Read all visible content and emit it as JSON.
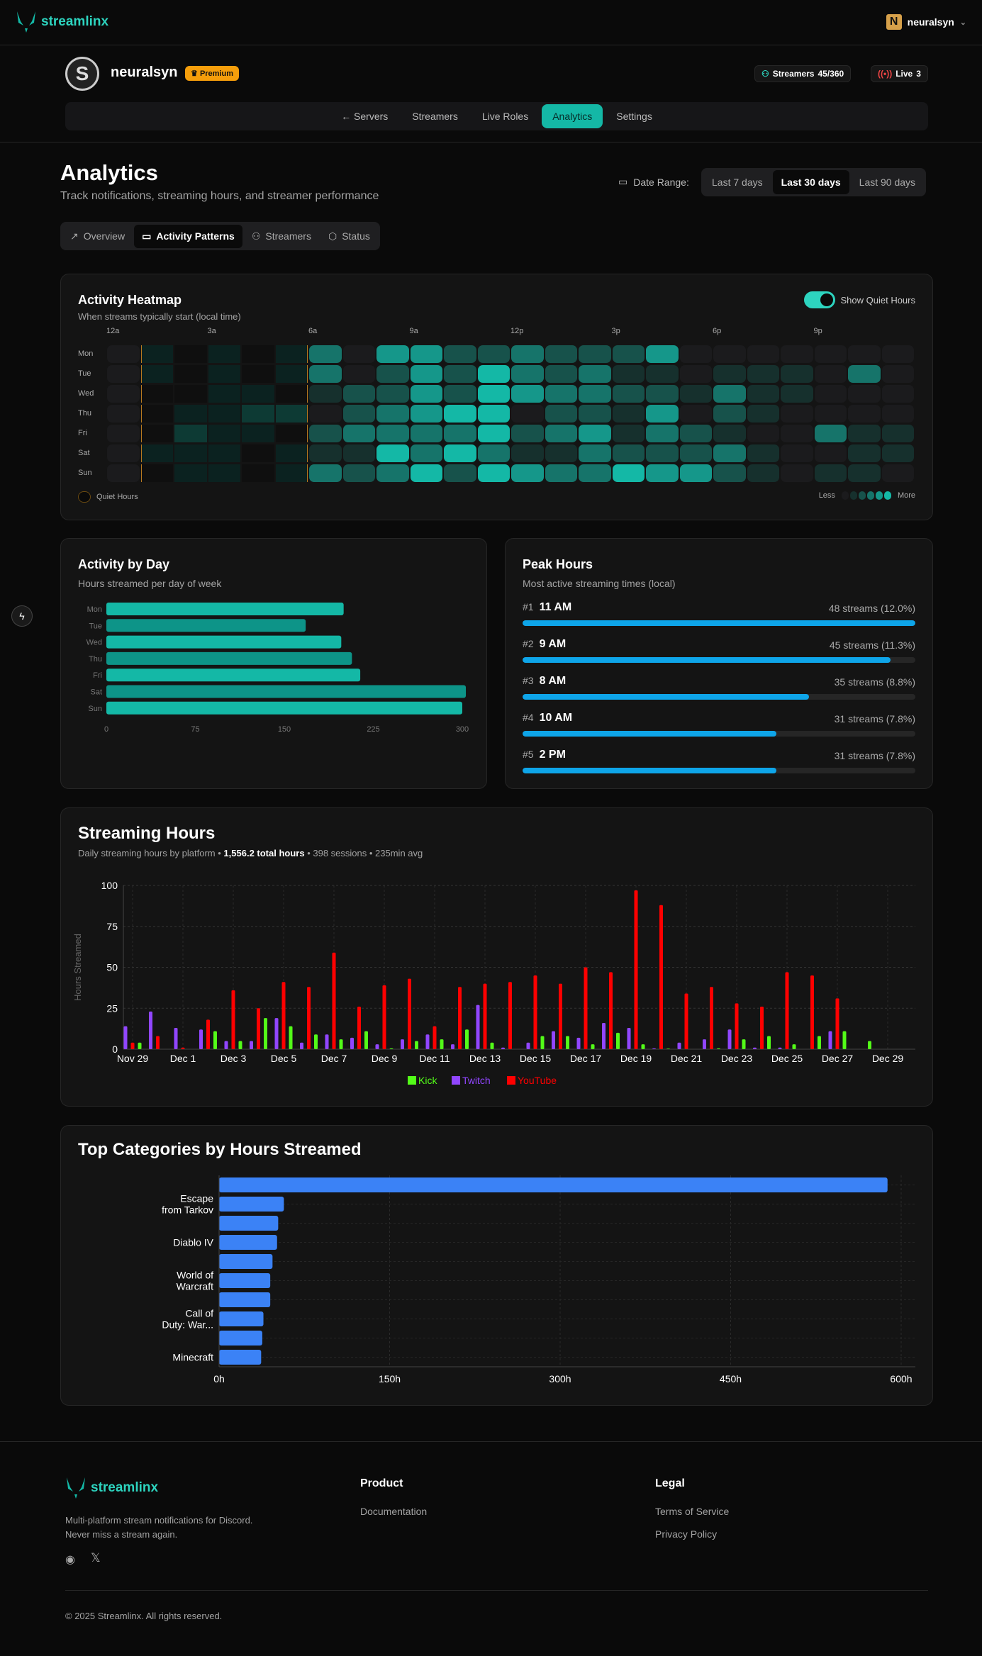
{
  "app": {
    "brand": "streamlinx",
    "user": "neuralsyn",
    "user_logo_letter": "N"
  },
  "server": {
    "initial": "S",
    "name": "neuralsyn",
    "badge": "Premium",
    "streamers_label": "Streamers",
    "streamers_value": "45/360",
    "live_label": "Live",
    "live_value": "3"
  },
  "subnav": [
    {
      "label": "Servers",
      "icon": "arrow-left-icon"
    },
    {
      "label": "Streamers"
    },
    {
      "label": "Live Roles"
    },
    {
      "label": "Analytics",
      "active": true
    },
    {
      "label": "Settings"
    }
  ],
  "page": {
    "title": "Analytics",
    "subtitle": "Track notifications, streaming hours, and streamer performance",
    "date_range_label": "Date Range:",
    "date_ranges": [
      "Last 7 days",
      "Last 30 days",
      "Last 90 days"
    ],
    "date_range_selected": "Last 30 days"
  },
  "tabs": [
    {
      "label": "Overview",
      "icon": "trending-icon"
    },
    {
      "label": "Activity Patterns",
      "icon": "calendar-icon",
      "active": true
    },
    {
      "label": "Streamers",
      "icon": "users-icon"
    },
    {
      "label": "Status",
      "icon": "shield-icon"
    }
  ],
  "heatmap": {
    "title": "Activity Heatmap",
    "subtitle": "When streams typically start (local time)",
    "toggle_label": "Show Quiet Hours",
    "toggle_on": true,
    "hour_labels": [
      "12a",
      "3a",
      "6a",
      "9a",
      "12p",
      "3p",
      "6p",
      "9p"
    ],
    "days": [
      "Mon",
      "Tue",
      "Wed",
      "Thu",
      "Fri",
      "Sat",
      "Sun"
    ],
    "quiet_hours": [
      1,
      2,
      3,
      4,
      5
    ],
    "levels": [
      [
        0,
        1,
        0,
        1,
        0,
        1,
        3,
        0,
        4,
        4,
        2,
        2,
        3,
        2,
        2,
        2,
        4,
        0,
        0,
        0,
        0,
        0,
        0,
        0
      ],
      [
        0,
        1,
        0,
        1,
        0,
        1,
        3,
        0,
        2,
        4,
        2,
        5,
        3,
        2,
        3,
        1,
        1,
        0,
        1,
        1,
        1,
        0,
        3,
        0
      ],
      [
        0,
        0,
        0,
        1,
        1,
        0,
        1,
        2,
        2,
        4,
        2,
        5,
        4,
        3,
        3,
        2,
        2,
        1,
        3,
        1,
        1,
        0,
        0,
        0
      ],
      [
        0,
        0,
        1,
        1,
        2,
        2,
        0,
        2,
        3,
        4,
        5,
        5,
        0,
        2,
        2,
        1,
        4,
        0,
        2,
        1,
        0,
        0,
        0,
        0
      ],
      [
        0,
        0,
        2,
        1,
        1,
        0,
        2,
        3,
        3,
        3,
        3,
        5,
        2,
        3,
        4,
        1,
        3,
        2,
        1,
        0,
        0,
        3,
        1,
        1
      ],
      [
        0,
        1,
        1,
        1,
        0,
        1,
        1,
        1,
        5,
        3,
        5,
        3,
        1,
        1,
        3,
        2,
        2,
        2,
        3,
        1,
        0,
        0,
        1,
        1
      ],
      [
        0,
        0,
        1,
        1,
        0,
        1,
        3,
        2,
        3,
        5,
        2,
        5,
        4,
        3,
        3,
        5,
        4,
        4,
        2,
        1,
        0,
        1,
        1,
        0
      ]
    ],
    "legend_quiet": "Quiet Hours",
    "legend_less": "Less",
    "legend_more": "More",
    "colors": [
      "#1b1b1d",
      "#16302d",
      "#17524b",
      "#16746a",
      "#15978a",
      "#14b8a6"
    ]
  },
  "chart_data": [
    {
      "type": "bar",
      "orientation": "horizontal",
      "title": "Activity by Day",
      "subtitle": "Hours streamed per day of week",
      "categories": [
        "Mon",
        "Tue",
        "Wed",
        "Thu",
        "Fri",
        "Sat",
        "Sun"
      ],
      "values": [
        200,
        168,
        198,
        207,
        214,
        303,
        300
      ],
      "xlim": [
        0,
        300
      ],
      "xticks": [
        "0",
        "75",
        "150",
        "225",
        "300"
      ],
      "colors": [
        "#14b8a6",
        "#0d9488"
      ]
    },
    {
      "type": "bar",
      "title": "Streaming Hours",
      "subtitle": "Daily streaming hours by platform",
      "summary": {
        "total": "1,556.2 total hours",
        "sessions": "398 sessions",
        "avg": "235min avg"
      },
      "ylabel": "Hours Streamed",
      "ylim": [
        0,
        100
      ],
      "yticks": [
        "0",
        "25",
        "50",
        "75",
        "100"
      ],
      "x": [
        "Nov 29",
        "Nov 30",
        "Dec 1",
        "Dec 2",
        "Dec 3",
        "Dec 4",
        "Dec 5",
        "Dec 6",
        "Dec 7",
        "Dec 8",
        "Dec 9",
        "Dec 10",
        "Dec 11",
        "Dec 12",
        "Dec 13",
        "Dec 14",
        "Dec 15",
        "Dec 16",
        "Dec 17",
        "Dec 18",
        "Dec 19",
        "Dec 20",
        "Dec 21",
        "Dec 22",
        "Dec 23",
        "Dec 24",
        "Dec 25",
        "Dec 26",
        "Dec 27",
        "Dec 28",
        "Dec 29"
      ],
      "xticks": [
        "Nov 29",
        "Dec 1",
        "Dec 3",
        "Dec 5",
        "Dec 7",
        "Dec 9",
        "Dec 11",
        "Dec 13",
        "Dec 15",
        "Dec 17",
        "Dec 19",
        "Dec 21",
        "Dec 23",
        "Dec 25",
        "Dec 27",
        "Dec 29"
      ],
      "series": [
        {
          "name": "Twitch",
          "color": "#9146ff",
          "values": [
            14,
            23,
            13,
            12,
            5,
            5,
            19,
            4,
            9,
            7,
            3,
            6,
            9,
            3,
            27,
            1,
            4,
            11,
            7,
            16,
            13,
            0.5,
            4,
            6,
            12,
            1,
            1,
            0,
            11,
            0,
            0
          ]
        },
        {
          "name": "YouTube",
          "color": "#ff0000",
          "values": [
            4,
            8,
            1,
            18,
            36,
            25,
            41,
            38,
            59,
            26,
            39,
            43,
            14,
            38,
            40,
            41,
            45,
            40,
            50,
            47,
            97,
            88,
            34,
            38,
            28,
            26,
            47,
            45,
            31,
            0,
            0
          ]
        },
        {
          "name": "Kick",
          "color": "#53fc18",
          "values": [
            4,
            0,
            0,
            11,
            5,
            19,
            14,
            9,
            6,
            11,
            0.5,
            5,
            6,
            12,
            4,
            0,
            8,
            8,
            3,
            10,
            3,
            0.3,
            0,
            0.5,
            6,
            8,
            3,
            8,
            11,
            5,
            0
          ]
        }
      ],
      "legend": [
        "Kick",
        "Twitch",
        "YouTube"
      ],
      "legend_placement": "bottom"
    },
    {
      "type": "bar",
      "orientation": "horizontal",
      "title": "Top Categories by Hours Streamed",
      "categories": [
        "",
        "Escape from Tarkov",
        "",
        "Diablo IV",
        "",
        "World of Warcraft",
        "",
        "Call of Duty: War...",
        "",
        "Minecraft"
      ],
      "values": [
        588,
        57,
        52,
        51,
        47,
        45,
        45,
        39,
        38,
        37
      ],
      "xlim": [
        0,
        600
      ],
      "xticks": [
        "0h",
        "150h",
        "300h",
        "450h",
        "600h"
      ],
      "color": "#3b82f6"
    }
  ],
  "peak": {
    "title": "Peak Hours",
    "subtitle": "Most active streaming times (local)",
    "items": [
      {
        "rank": "#1",
        "time": "11 AM",
        "count": "48 streams (12.0%)",
        "fill": 1.0
      },
      {
        "rank": "#2",
        "time": "9 AM",
        "count": "45 streams (11.3%)",
        "fill": 0.9375
      },
      {
        "rank": "#3",
        "time": "8 AM",
        "count": "35 streams (8.8%)",
        "fill": 0.729
      },
      {
        "rank": "#4",
        "time": "10 AM",
        "count": "31 streams (7.8%)",
        "fill": 0.646
      },
      {
        "rank": "#5",
        "time": "2 PM",
        "count": "31 streams (7.8%)",
        "fill": 0.646
      }
    ]
  },
  "footer": {
    "tagline1": "Multi-platform stream notifications for Discord.",
    "tagline2": "Never miss a stream again.",
    "product_heading": "Product",
    "product_links": [
      "Documentation"
    ],
    "legal_heading": "Legal",
    "legal_links": [
      "Terms of Service",
      "Privacy Policy"
    ],
    "copyright": "© 2025 Streamlinx. All rights reserved."
  }
}
